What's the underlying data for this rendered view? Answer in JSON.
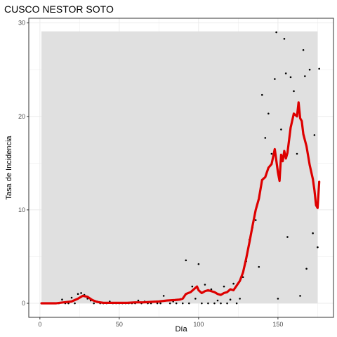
{
  "chart_data": {
    "type": "scatter",
    "title": "CUSCO NESTOR SOTO",
    "xlabel": "Día",
    "ylabel": "Tasa de Incidencia",
    "xlim": [
      -7,
      185
    ],
    "ylim": [
      -1.5,
      30.5
    ],
    "x_ticks": [
      0,
      50,
      100,
      150
    ],
    "y_ticks": [
      0,
      10,
      20,
      30
    ],
    "x_tick_labels": [
      "0",
      "50",
      "100",
      "150"
    ],
    "y_tick_labels": [
      "0",
      "10",
      "20",
      "30"
    ],
    "grid": true,
    "band": {
      "x0": 1,
      "x1": 175,
      "y0": 0,
      "y1": 29.1,
      "color": "#e0e0e0"
    },
    "colors": {
      "points": "#000000",
      "line": "#dd0000",
      "panel_border": "#333333",
      "grid": "#ebebeb"
    },
    "series": [
      {
        "kind": "points",
        "points": [
          [
            2,
            0
          ],
          [
            4,
            0
          ],
          [
            6,
            0
          ],
          [
            8,
            0
          ],
          [
            10,
            0
          ],
          [
            12,
            0
          ],
          [
            14,
            0.4
          ],
          [
            16,
            0
          ],
          [
            18,
            0
          ],
          [
            20,
            0.6
          ],
          [
            22,
            0
          ],
          [
            24,
            1.0
          ],
          [
            26,
            1.1
          ],
          [
            28,
            0.9
          ],
          [
            30,
            0.5
          ],
          [
            32,
            0.3
          ],
          [
            34,
            0
          ],
          [
            36,
            0.2
          ],
          [
            38,
            0
          ],
          [
            40,
            0
          ],
          [
            42,
            0
          ],
          [
            44,
            0.2
          ],
          [
            46,
            0
          ],
          [
            48,
            0
          ],
          [
            50,
            0
          ],
          [
            52,
            0
          ],
          [
            54,
            0
          ],
          [
            56,
            0
          ],
          [
            58,
            0
          ],
          [
            60,
            0
          ],
          [
            62,
            0.3
          ],
          [
            64,
            0
          ],
          [
            66,
            0.2
          ],
          [
            68,
            0
          ],
          [
            70,
            0
          ],
          [
            72,
            0.2
          ],
          [
            74,
            0
          ],
          [
            76,
            0
          ],
          [
            78,
            0.8
          ],
          [
            80,
            0.3
          ],
          [
            82,
            0
          ],
          [
            84,
            0.2
          ],
          [
            86,
            0
          ],
          [
            88,
            0.4
          ],
          [
            90,
            0
          ],
          [
            92,
            4.6
          ],
          [
            94,
            0
          ],
          [
            96,
            1.8
          ],
          [
            98,
            0.5
          ],
          [
            100,
            4.2
          ],
          [
            102,
            0
          ],
          [
            104,
            2.0
          ],
          [
            106,
            0
          ],
          [
            108,
            1.5
          ],
          [
            110,
            0
          ],
          [
            112,
            0.3
          ],
          [
            114,
            0
          ],
          [
            116,
            1.8
          ],
          [
            118,
            0
          ],
          [
            120,
            0.4
          ],
          [
            122,
            2.1
          ],
          [
            124,
            0
          ],
          [
            126,
            0.5
          ],
          [
            128,
            2.8
          ],
          [
            130,
            4.5
          ],
          [
            132,
            6.8
          ],
          [
            134,
            8.1
          ],
          [
            136,
            8.9
          ],
          [
            138,
            3.9
          ],
          [
            140,
            22.3
          ],
          [
            142,
            17.7
          ],
          [
            144,
            20.3
          ],
          [
            146,
            16.0
          ],
          [
            148,
            24.0
          ],
          [
            149,
            29.0
          ],
          [
            150,
            0.5
          ],
          [
            152,
            18.6
          ],
          [
            154,
            28.3
          ],
          [
            155,
            24.6
          ],
          [
            156,
            7.1
          ],
          [
            158,
            24.2
          ],
          [
            160,
            22.7
          ],
          [
            162,
            16.0
          ],
          [
            164,
            0.8
          ],
          [
            166,
            27.1
          ],
          [
            167,
            24.3
          ],
          [
            168,
            3.7
          ],
          [
            170,
            25.0
          ],
          [
            172,
            7.5
          ],
          [
            173,
            18.0
          ],
          [
            175,
            6.0
          ],
          [
            176,
            25.1
          ]
        ]
      },
      {
        "kind": "line",
        "points": [
          [
            1,
            0
          ],
          [
            5,
            0
          ],
          [
            10,
            0
          ],
          [
            15,
            0.1
          ],
          [
            20,
            0.2
          ],
          [
            24,
            0.5
          ],
          [
            27,
            0.8
          ],
          [
            30,
            0.7
          ],
          [
            33,
            0.35
          ],
          [
            36,
            0.15
          ],
          [
            40,
            0.05
          ],
          [
            45,
            0.05
          ],
          [
            50,
            0.05
          ],
          [
            55,
            0.05
          ],
          [
            60,
            0.1
          ],
          [
            65,
            0.1
          ],
          [
            70,
            0.15
          ],
          [
            75,
            0.2
          ],
          [
            80,
            0.3
          ],
          [
            85,
            0.35
          ],
          [
            88,
            0.4
          ],
          [
            90,
            0.5
          ],
          [
            92,
            1.0
          ],
          [
            95,
            1.2
          ],
          [
            97,
            1.5
          ],
          [
            99,
            1.8
          ],
          [
            100,
            1.4
          ],
          [
            102,
            1.1
          ],
          [
            104,
            1.3
          ],
          [
            106,
            1.4
          ],
          [
            108,
            1.3
          ],
          [
            110,
            1.2
          ],
          [
            112,
            1.0
          ],
          [
            114,
            0.9
          ],
          [
            116,
            1.1
          ],
          [
            118,
            1.2
          ],
          [
            120,
            1.5
          ],
          [
            122,
            1.4
          ],
          [
            124,
            1.9
          ],
          [
            126,
            2.4
          ],
          [
            128,
            3.3
          ],
          [
            130,
            4.8
          ],
          [
            132,
            6.5
          ],
          [
            134,
            8.3
          ],
          [
            136,
            10.0
          ],
          [
            138,
            11.2
          ],
          [
            140,
            13.2
          ],
          [
            142,
            13.5
          ],
          [
            144,
            14.5
          ],
          [
            146,
            14.9
          ],
          [
            148,
            16.5
          ],
          [
            150,
            14.0
          ],
          [
            151,
            13.1
          ],
          [
            152,
            15.9
          ],
          [
            153,
            15.2
          ],
          [
            154,
            16.3
          ],
          [
            155,
            15.5
          ],
          [
            156,
            16.1
          ],
          [
            158,
            18.8
          ],
          [
            160,
            20.3
          ],
          [
            162,
            20.0
          ],
          [
            163,
            21.5
          ],
          [
            164,
            19.8
          ],
          [
            165,
            19.5
          ],
          [
            166,
            18.1
          ],
          [
            168,
            16.8
          ],
          [
            170,
            14.8
          ],
          [
            172,
            13.3
          ],
          [
            173,
            12.1
          ],
          [
            174,
            10.5
          ],
          [
            175,
            10.2
          ],
          [
            176,
            13.0
          ]
        ]
      }
    ]
  }
}
